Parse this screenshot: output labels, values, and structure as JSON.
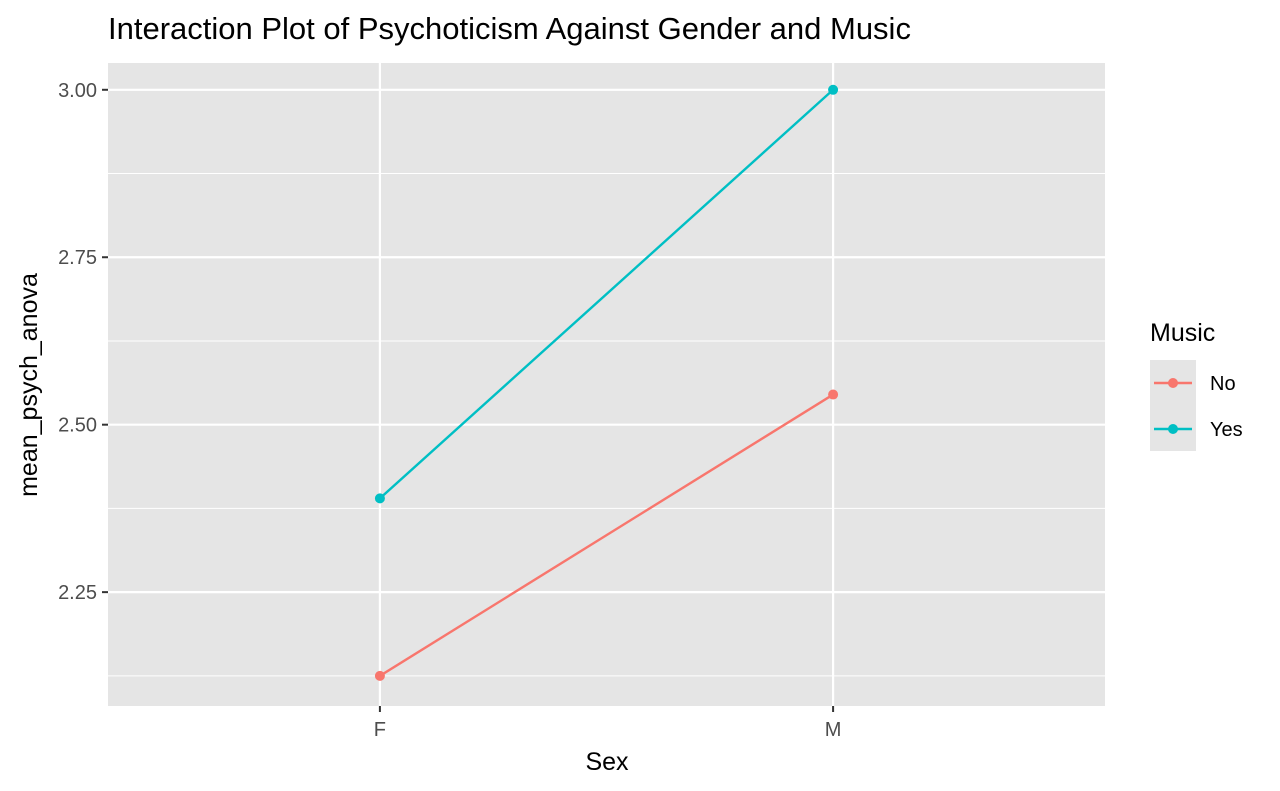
{
  "chart_data": {
    "type": "line",
    "title": "Interaction Plot of Psychoticism Against Gender and Music",
    "xlabel": "Sex",
    "ylabel": "mean_psych_anova",
    "categories": [
      "F",
      "M"
    ],
    "ylim": [
      2.08,
      3.04
    ],
    "yticks": [
      2.25,
      2.5,
      2.75,
      3.0
    ],
    "ytick_labels": [
      "2.25",
      "2.50",
      "2.75",
      "3.00"
    ],
    "grid": true,
    "legend": {
      "title": "Music",
      "position": "right"
    },
    "series": [
      {
        "name": "No",
        "color": "#F8766D",
        "values": [
          2.125,
          2.545
        ]
      },
      {
        "name": "Yes",
        "color": "#00BFC4",
        "values": [
          2.39,
          3.0
        ]
      }
    ],
    "panel_background": "#E5E5E5",
    "grid_color": "#FFFFFF"
  }
}
